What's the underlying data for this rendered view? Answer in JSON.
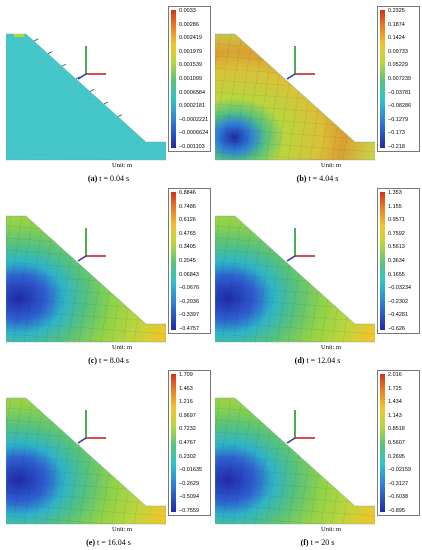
{
  "unit_label": "Unit: m",
  "panels": [
    {
      "letter": "(a)",
      "time": "t = 0.04 s",
      "ticks": [
        "0.0033",
        "0.00286",
        "0.002419",
        "0.001979",
        "0.001539",
        "0.001099",
        "0.0006584",
        "0.0002181",
        "−0.0002221",
        "−0.0006624",
        "−0.001103"
      ],
      "style": "initial"
    },
    {
      "letter": "(b)",
      "time": "t = 4.04 s",
      "ticks": [
        "0.2325",
        "0.1874",
        "0.1424",
        "0.09733",
        "0.05229",
        "0.007239",
        "−0.03781",
        "−0.08286",
        "−0.1279",
        "−0.173",
        "−0.218"
      ],
      "style": "developing"
    },
    {
      "letter": "(c)",
      "time": "t = 8.04 s",
      "ticks": [
        "0.8846",
        "0.7486",
        "0.6126",
        "0.4765",
        "0.3405",
        "0.2045",
        "0.06843",
        "−0.0676",
        "−0.2036",
        "−0.3397",
        "−0.4757"
      ],
      "style": "developed"
    },
    {
      "letter": "(d)",
      "time": "t = 12.04 s",
      "ticks": [
        "1.353",
        "1.155",
        "0.9571",
        "0.7592",
        "0.5613",
        "0.3634",
        "0.1655",
        "−0.03234",
        "−0.2302",
        "−0.4281",
        "−0.626"
      ],
      "style": "developed"
    },
    {
      "letter": "(e)",
      "time": "t = 16.04 s",
      "ticks": [
        "1.709",
        "1.463",
        "1.216",
        "0.9697",
        "0.7232",
        "0.4767",
        "0.2302",
        "−0.01635",
        "−0.2629",
        "−0.5094",
        "−0.7559"
      ],
      "style": "developed"
    },
    {
      "letter": "(f)",
      "time": "t = 20 s",
      "ticks": [
        "2.016",
        "1.725",
        "1.434",
        "1.143",
        "0.8518",
        "0.5607",
        "0.2695",
        "−0.02159",
        "−0.3127",
        "−0.6038",
        "−0.895"
      ],
      "style": "developed"
    }
  ],
  "colors": {
    "initial_fill": "#45c7c9",
    "high": "#d4301e",
    "mid": "#8fd24a",
    "low": "#1f2aa8",
    "axis_x": "#c01818",
    "axis_y": "#1f9a2a",
    "axis_z": "#2a35b8"
  }
}
